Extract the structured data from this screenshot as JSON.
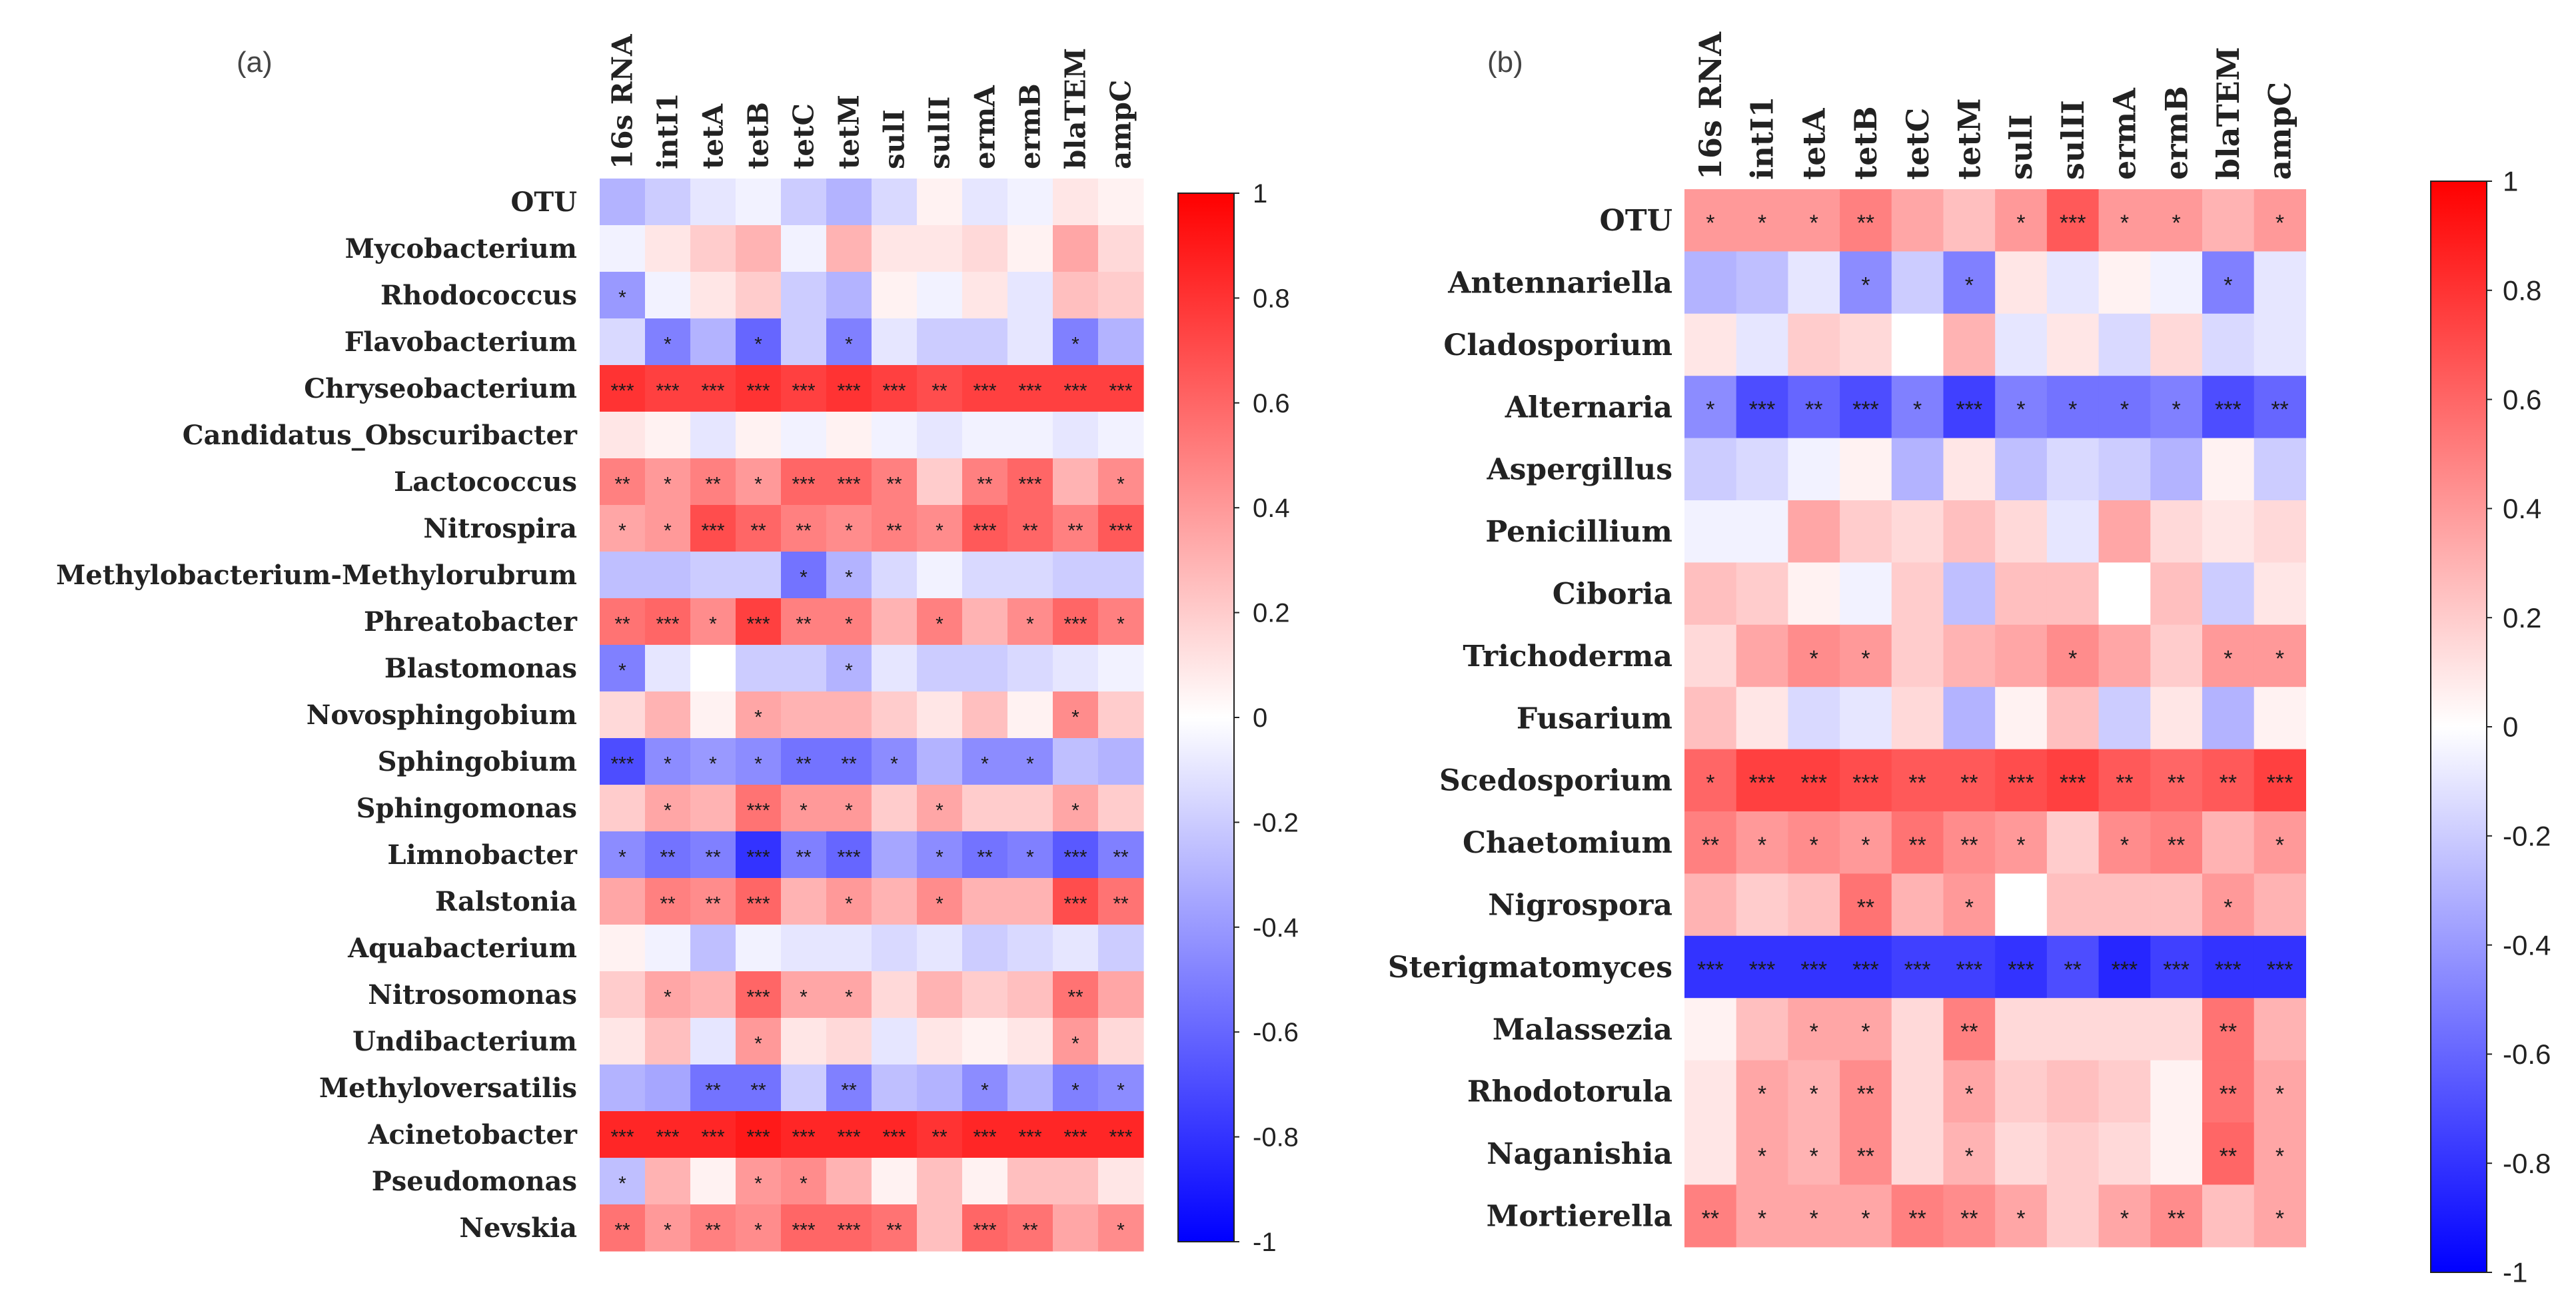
{
  "chart_data": [
    {
      "type": "heatmap",
      "panel_label": "(a)",
      "columns": [
        "16s RNA",
        "intI1",
        "tetA",
        "tetB",
        "tetC",
        "tetM",
        "sulI",
        "sulII",
        "ermA",
        "ermB",
        "blaTEM",
        "ampC"
      ],
      "rows": [
        "OTU",
        "Mycobacterium",
        "Rhodococcus",
        "Flavobacterium",
        "Chryseobacterium",
        "Candidatus_Obscuribacter",
        "Lactococcus",
        "Nitrospira",
        "Methylobacterium-Methylorubrum",
        "Phreatobacter",
        "Blastomonas",
        "Novosphingobium",
        "Sphingobium",
        "Sphingomonas",
        "Limnobacter",
        "Ralstonia",
        "Aquabacterium",
        "Nitrosomonas",
        "Undibacterium",
        "Methyloversatilis",
        "Acinetobacter",
        "Pseudomonas",
        "Nevskia"
      ],
      "values": [
        [
          -0.3,
          -0.2,
          -0.1,
          -0.05,
          -0.2,
          -0.3,
          -0.15,
          0.05,
          -0.1,
          -0.05,
          0.1,
          0.05
        ],
        [
          -0.05,
          0.1,
          0.2,
          0.3,
          -0.05,
          0.3,
          0.1,
          0.1,
          0.15,
          0.05,
          0.35,
          0.15
        ],
        [
          -0.4,
          -0.05,
          0.1,
          0.2,
          -0.2,
          -0.3,
          0.05,
          -0.05,
          0.1,
          -0.1,
          0.25,
          0.2
        ],
        [
          -0.15,
          -0.5,
          -0.3,
          -0.6,
          -0.2,
          -0.5,
          -0.1,
          -0.2,
          -0.2,
          -0.1,
          -0.5,
          -0.3
        ],
        [
          0.8,
          0.75,
          0.75,
          0.8,
          0.75,
          0.8,
          0.75,
          0.7,
          0.75,
          0.75,
          0.75,
          0.75
        ],
        [
          0.1,
          0.05,
          -0.1,
          0.05,
          -0.05,
          0.05,
          -0.05,
          -0.1,
          -0.05,
          -0.05,
          -0.1,
          -0.05
        ],
        [
          0.5,
          0.4,
          0.5,
          0.4,
          0.6,
          0.6,
          0.5,
          0.2,
          0.5,
          0.6,
          0.3,
          0.45
        ],
        [
          0.35,
          0.4,
          0.7,
          0.6,
          0.5,
          0.45,
          0.5,
          0.45,
          0.65,
          0.6,
          0.5,
          0.65
        ],
        [
          -0.25,
          -0.25,
          -0.2,
          -0.2,
          -0.55,
          -0.3,
          -0.15,
          -0.05,
          -0.15,
          -0.15,
          -0.2,
          -0.2
        ],
        [
          0.55,
          0.6,
          0.45,
          0.75,
          0.5,
          0.5,
          0.3,
          0.5,
          0.3,
          0.45,
          0.6,
          0.5
        ],
        [
          -0.5,
          -0.1,
          0.0,
          -0.2,
          -0.2,
          -0.3,
          -0.1,
          -0.2,
          -0.2,
          -0.15,
          -0.1,
          -0.05
        ],
        [
          0.15,
          0.3,
          0.05,
          0.35,
          0.3,
          0.3,
          0.2,
          0.1,
          0.25,
          0.05,
          0.45,
          0.2
        ],
        [
          -0.7,
          -0.45,
          -0.4,
          -0.45,
          -0.55,
          -0.55,
          -0.45,
          -0.3,
          -0.45,
          -0.45,
          -0.25,
          -0.3
        ],
        [
          0.2,
          0.35,
          0.3,
          0.55,
          0.4,
          0.4,
          0.2,
          0.35,
          0.2,
          0.2,
          0.35,
          0.2
        ],
        [
          -0.45,
          -0.55,
          -0.5,
          -0.8,
          -0.5,
          -0.6,
          -0.35,
          -0.45,
          -0.55,
          -0.5,
          -0.65,
          -0.5
        ],
        [
          0.35,
          0.5,
          0.45,
          0.6,
          0.3,
          0.4,
          0.3,
          0.45,
          0.3,
          0.3,
          0.7,
          0.55
        ],
        [
          0.05,
          -0.05,
          -0.25,
          -0.05,
          -0.1,
          -0.1,
          -0.15,
          -0.1,
          -0.2,
          -0.15,
          -0.1,
          -0.2
        ],
        [
          0.2,
          0.35,
          0.3,
          0.6,
          0.35,
          0.35,
          0.15,
          0.3,
          0.2,
          0.25,
          0.55,
          0.35
        ],
        [
          0.1,
          0.25,
          -0.1,
          0.4,
          0.1,
          0.15,
          -0.1,
          0.1,
          0.05,
          0.1,
          0.4,
          0.15
        ],
        [
          -0.3,
          -0.35,
          -0.55,
          -0.55,
          -0.2,
          -0.5,
          -0.25,
          -0.3,
          -0.45,
          -0.3,
          -0.5,
          -0.45
        ],
        [
          0.85,
          0.85,
          0.85,
          0.9,
          0.85,
          0.85,
          0.85,
          0.8,
          0.85,
          0.85,
          0.85,
          0.85
        ],
        [
          -0.25,
          0.3,
          0.05,
          0.4,
          0.45,
          0.3,
          0.05,
          0.25,
          0.05,
          0.25,
          0.25,
          0.1
        ],
        [
          0.55,
          0.4,
          0.5,
          0.45,
          0.6,
          0.6,
          0.55,
          0.25,
          0.6,
          0.55,
          0.35,
          0.45
        ]
      ],
      "stars": [
        [
          "",
          "",
          "",
          "",
          "",
          "",
          "",
          "",
          "",
          "",
          "",
          ""
        ],
        [
          "",
          "",
          "",
          "",
          "",
          "",
          "",
          "",
          "",
          "",
          "",
          ""
        ],
        [
          "*",
          "",
          "",
          "",
          "",
          "",
          "",
          "",
          "",
          "",
          "",
          ""
        ],
        [
          "",
          "*",
          "",
          "*",
          "",
          "*",
          "",
          "",
          "",
          "",
          "*",
          ""
        ],
        [
          "***",
          "***",
          "***",
          "***",
          "***",
          "***",
          "***",
          "**",
          "***",
          "***",
          "***",
          "***"
        ],
        [
          "",
          "",
          "",
          "",
          "",
          "",
          "",
          "",
          "",
          "",
          "",
          ""
        ],
        [
          "**",
          "*",
          "**",
          "*",
          "***",
          "***",
          "**",
          "",
          "**",
          "***",
          "",
          "*"
        ],
        [
          "*",
          "*",
          "***",
          "**",
          "**",
          "*",
          "**",
          "*",
          "***",
          "**",
          "**",
          "***"
        ],
        [
          "",
          "",
          "",
          "",
          "*",
          "*",
          "",
          "",
          "",
          "",
          "",
          ""
        ],
        [
          "**",
          "***",
          "*",
          "***",
          "**",
          "*",
          "",
          "*",
          "",
          "*",
          "***",
          "*"
        ],
        [
          "*",
          "",
          "",
          "",
          "",
          "*",
          "",
          "",
          "",
          "",
          "",
          ""
        ],
        [
          "",
          "",
          "",
          "*",
          "",
          "",
          "",
          "",
          "",
          "",
          "*",
          ""
        ],
        [
          "***",
          "*",
          "*",
          "*",
          "**",
          "**",
          "*",
          "",
          "*",
          "*",
          "",
          ""
        ],
        [
          "",
          "*",
          "",
          "***",
          "*",
          "*",
          "",
          "*",
          "",
          "",
          "*",
          ""
        ],
        [
          "*",
          "**",
          "**",
          "***",
          "**",
          "***",
          "",
          "*",
          "**",
          "*",
          "***",
          "**"
        ],
        [
          "",
          "**",
          "**",
          "***",
          "",
          "*",
          "",
          "*",
          "",
          "",
          "***",
          "**"
        ],
        [
          "",
          "",
          "",
          "",
          "",
          "",
          "",
          "",
          "",
          "",
          "",
          ""
        ],
        [
          "",
          "*",
          "",
          "***",
          "*",
          "*",
          "",
          "",
          "",
          "",
          "**",
          ""
        ],
        [
          "",
          "",
          "",
          "*",
          "",
          "",
          "",
          "",
          "",
          "",
          "*",
          ""
        ],
        [
          "",
          "",
          "**",
          "**",
          "",
          "**",
          "",
          "",
          "*",
          "",
          "*",
          "*"
        ],
        [
          "***",
          "***",
          "***",
          "***",
          "***",
          "***",
          "***",
          "**",
          "***",
          "***",
          "***",
          "***"
        ],
        [
          "*",
          "",
          "",
          "*",
          "*",
          "",
          "",
          "",
          "",
          "",
          "",
          ""
        ],
        [
          "**",
          "*",
          "**",
          "*",
          "***",
          "***",
          "**",
          "",
          "***",
          "**",
          "",
          "*"
        ]
      ],
      "colorbar": {
        "ticks": [
          "1",
          "0.8",
          "0.6",
          "0.4",
          "0.2",
          "0",
          "-0.2",
          "-0.4",
          "-0.6",
          "-0.8",
          "-1"
        ],
        "min": -1,
        "max": 1
      }
    },
    {
      "type": "heatmap",
      "panel_label": "(b)",
      "columns": [
        "16s RNA",
        "intI1",
        "tetA",
        "tetB",
        "tetC",
        "tetM",
        "sulI",
        "sulII",
        "ermA",
        "ermB",
        "blaTEM",
        "ampC"
      ],
      "rows": [
        "OTU",
        "Antennariella",
        "Cladosporium",
        "Alternaria",
        "Aspergillus",
        "Penicillium",
        "Ciboria",
        "Trichoderma",
        "Fusarium",
        "Scedosporium",
        "Chaetomium",
        "Nigrospora",
        "Sterigmatomyces",
        "Malassezia",
        "Rhodotorula",
        "Naganishia",
        "Mortierella"
      ],
      "values": [
        [
          0.4,
          0.4,
          0.4,
          0.5,
          0.35,
          0.25,
          0.4,
          0.65,
          0.4,
          0.4,
          0.3,
          0.4
        ],
        [
          -0.3,
          -0.25,
          -0.1,
          -0.45,
          -0.2,
          -0.5,
          0.1,
          -0.1,
          0.05,
          -0.05,
          -0.5,
          -0.1
        ],
        [
          0.1,
          -0.1,
          0.2,
          0.15,
          0.0,
          0.3,
          -0.1,
          0.1,
          -0.15,
          0.15,
          -0.15,
          -0.1
        ],
        [
          -0.45,
          -0.7,
          -0.6,
          -0.7,
          -0.5,
          -0.75,
          -0.5,
          -0.55,
          -0.55,
          -0.5,
          -0.7,
          -0.6
        ],
        [
          -0.2,
          -0.15,
          -0.05,
          0.05,
          -0.3,
          0.1,
          -0.25,
          -0.15,
          -0.2,
          -0.3,
          0.05,
          -0.2
        ],
        [
          -0.05,
          -0.05,
          0.35,
          0.2,
          0.15,
          0.25,
          0.15,
          -0.1,
          0.35,
          0.15,
          0.1,
          0.15
        ],
        [
          0.25,
          0.2,
          0.05,
          -0.05,
          0.2,
          -0.25,
          0.25,
          0.25,
          0.0,
          0.25,
          -0.2,
          0.1
        ],
        [
          0.15,
          0.35,
          0.45,
          0.4,
          0.2,
          0.3,
          0.35,
          0.45,
          0.35,
          0.2,
          0.4,
          0.4
        ],
        [
          0.25,
          0.1,
          -0.15,
          -0.1,
          0.15,
          -0.3,
          0.05,
          0.25,
          -0.2,
          0.1,
          -0.3,
          0.05
        ],
        [
          0.6,
          0.75,
          0.75,
          0.7,
          0.65,
          0.65,
          0.7,
          0.75,
          0.65,
          0.6,
          0.65,
          0.75
        ],
        [
          0.5,
          0.4,
          0.45,
          0.4,
          0.55,
          0.45,
          0.4,
          0.2,
          0.45,
          0.5,
          0.3,
          0.4
        ],
        [
          0.3,
          0.2,
          0.25,
          0.55,
          0.3,
          0.4,
          0.0,
          0.25,
          0.25,
          0.25,
          0.4,
          0.3
        ],
        [
          -0.8,
          -0.8,
          -0.8,
          -0.8,
          -0.75,
          -0.75,
          -0.8,
          -0.7,
          -0.85,
          -0.75,
          -0.8,
          -0.8
        ],
        [
          0.05,
          0.25,
          0.35,
          0.35,
          0.15,
          0.5,
          0.15,
          0.15,
          0.15,
          0.15,
          0.55,
          0.3
        ],
        [
          0.1,
          0.35,
          0.3,
          0.45,
          0.15,
          0.35,
          0.2,
          0.25,
          0.2,
          0.05,
          0.55,
          0.35
        ],
        [
          0.1,
          0.35,
          0.3,
          0.45,
          0.15,
          0.3,
          0.15,
          0.2,
          0.15,
          0.05,
          0.6,
          0.35
        ],
        [
          0.5,
          0.35,
          0.35,
          0.35,
          0.5,
          0.45,
          0.35,
          0.2,
          0.35,
          0.45,
          0.25,
          0.35
        ]
      ],
      "stars": [
        [
          "*",
          "*",
          "*",
          "**",
          "",
          "",
          "*",
          "***",
          "*",
          "*",
          "",
          "*"
        ],
        [
          "",
          "",
          "",
          "*",
          "",
          "*",
          "",
          "",
          "",
          "",
          "*",
          ""
        ],
        [
          "",
          "",
          "",
          "",
          "",
          "",
          "",
          "",
          "",
          "",
          "",
          ""
        ],
        [
          "*",
          "***",
          "**",
          "***",
          "*",
          "***",
          "*",
          "*",
          "*",
          "*",
          "***",
          "**"
        ],
        [
          "",
          "",
          "",
          "",
          "",
          "",
          "",
          "",
          "",
          "",
          "",
          ""
        ],
        [
          "",
          "",
          "",
          "",
          "",
          "",
          "",
          "",
          "",
          "",
          "",
          ""
        ],
        [
          "",
          "",
          "",
          "",
          "",
          "",
          "",
          "",
          "",
          "",
          "",
          ""
        ],
        [
          "",
          "",
          "*",
          "*",
          "",
          "",
          "",
          "*",
          "",
          "",
          "*",
          "*"
        ],
        [
          "",
          "",
          "",
          "",
          "",
          "",
          "",
          "",
          "",
          "",
          "",
          ""
        ],
        [
          "*",
          "***",
          "***",
          "***",
          "**",
          "**",
          "***",
          "***",
          "**",
          "**",
          "**",
          "***"
        ],
        [
          "**",
          "*",
          "*",
          "*",
          "**",
          "**",
          "*",
          "",
          "*",
          "**",
          "",
          "*"
        ],
        [
          "",
          "",
          "",
          "**",
          "",
          "*",
          "",
          "",
          "",
          "",
          "*",
          ""
        ],
        [
          "***",
          "***",
          "***",
          "***",
          "***",
          "***",
          "***",
          "**",
          "***",
          "***",
          "***",
          "***"
        ],
        [
          "",
          "",
          "*",
          "*",
          "",
          "**",
          "",
          "",
          "",
          "",
          "**",
          ""
        ],
        [
          "",
          "*",
          "*",
          "**",
          "",
          "*",
          "",
          "",
          "",
          "",
          "**",
          "*"
        ],
        [
          "",
          "*",
          "*",
          "**",
          "",
          "*",
          "",
          "",
          "",
          "",
          "**",
          "*"
        ],
        [
          "**",
          "*",
          "*",
          "*",
          "**",
          "**",
          "*",
          "",
          "*",
          "**",
          "",
          "*"
        ]
      ],
      "colorbar": {
        "ticks": [
          "1",
          "0.8",
          "0.6",
          "0.4",
          "0.2",
          "0",
          "-0.2",
          "-0.4",
          "-0.6",
          "-0.8",
          "-1"
        ],
        "min": -1,
        "max": 1
      }
    }
  ]
}
